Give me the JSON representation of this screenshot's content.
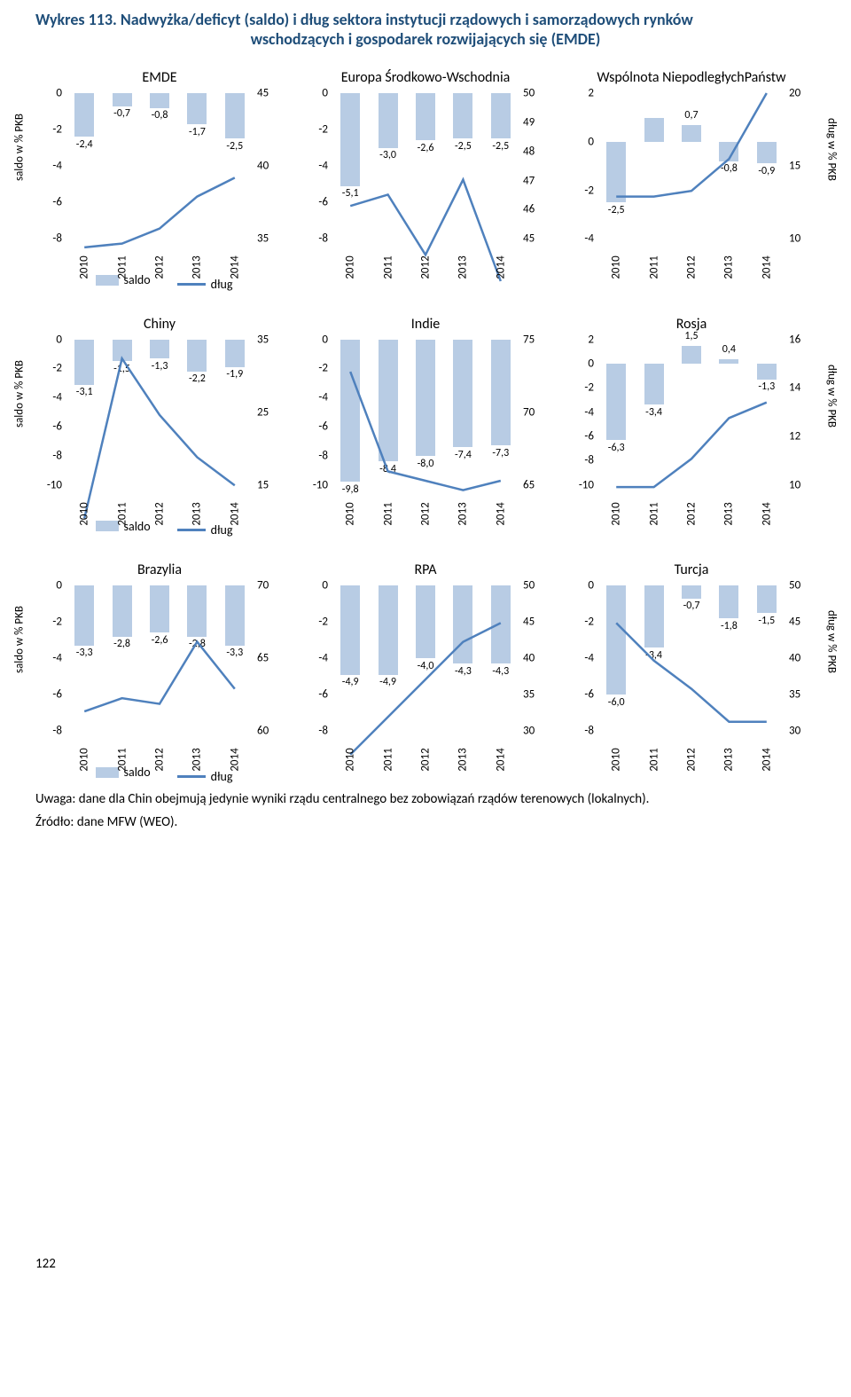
{
  "pageNumber": "122",
  "title": {
    "prefix": "Wykres 113. ",
    "main": "Nadwyżka/deficyt (saldo) i dług sektora instytucji rządowych i samorządowych rynków",
    "sub": "wschodzących i gospodarek rozwijających się (EMDE)"
  },
  "axisLabels": {
    "left": "saldo w % PKB",
    "right": "dług w % PKB"
  },
  "legend": {
    "saldo": "saldo",
    "dlug": "dług"
  },
  "note": "Uwaga: dane dla Chin obejmują jedynie wyniki rządu centralnego bez zobowiązań rządów terenowych (lokalnych).",
  "source": "Źródło: dane MFW (WEO).",
  "colors": {
    "bar": "#b8cce4",
    "line": "#4f81bd",
    "title": "#1f4e79"
  },
  "years": [
    "2010",
    "2011",
    "2012",
    "2013",
    "2014"
  ],
  "charts": [
    {
      "title": "EMDE",
      "saldo": {
        "min": -8,
        "max": 0,
        "step": 2,
        "values": [
          -2.4,
          -0.7,
          -0.8,
          -1.7,
          -2.5
        ],
        "labels": [
          "-2,4",
          "-0,7",
          "-0,8",
          "-1,7",
          "-2,5"
        ]
      },
      "dlug": {
        "min": 35,
        "max": 45,
        "step": 5,
        "values": [
          36.8,
          37.0,
          37.8,
          39.5,
          40.5
        ]
      },
      "showYLabels": true,
      "showLegend": true
    },
    {
      "title": "Europa Środkowo-\nWschodnia",
      "saldo": {
        "min": -8,
        "max": 0,
        "step": 2,
        "values": [
          -5.1,
          -3.0,
          -2.6,
          -2.5,
          -2.5
        ],
        "labels": [
          "-5,1",
          "-3,0",
          "-2,6",
          "-2,5",
          "-2,5"
        ]
      },
      "dlug": {
        "min": 45,
        "max": 50,
        "step": 1,
        "values": [
          47.0,
          47.3,
          45.7,
          47.7,
          45.0
        ]
      }
    },
    {
      "title": "Wspólnota Niepodległych\nPaństw",
      "saldo": {
        "min": -4,
        "max": 2,
        "step": 2,
        "values": [
          -2.5,
          1.0,
          0.7,
          -0.8,
          -0.9
        ],
        "labels": [
          "-2,5",
          "",
          "0,7",
          "-0,8",
          "-0,9"
        ]
      },
      "dlug": {
        "min": 10,
        "max": 20,
        "step": 5,
        "values": [
          14.5,
          14.5,
          14.8,
          16.5,
          20.0
        ]
      },
      "showYLabels": true
    },
    {
      "title": "Chiny",
      "saldo": {
        "min": -10,
        "max": 0,
        "step": 2,
        "values": [
          -3.1,
          -1.5,
          -1.3,
          -2.2,
          -1.9
        ],
        "labels": [
          "-3,1",
          "-1,5",
          "-1,3",
          "-2,2",
          "-1,9"
        ]
      },
      "dlug": {
        "min": 15,
        "max": 35,
        "step": 10,
        "values": [
          16.0,
          33.0,
          27.0,
          22.5,
          19.5
        ]
      },
      "showYLabels": true,
      "showLegend": true
    },
    {
      "title": "Indie",
      "saldo": {
        "min": -10,
        "max": 0,
        "step": 2,
        "values": [
          -9.8,
          -8.4,
          -8.0,
          -7.4,
          -7.3
        ],
        "labels": [
          "-9,8",
          "-8,4",
          "-8,0",
          "-7,4",
          "-7,3"
        ]
      },
      "dlug": {
        "min": 65,
        "max": 75,
        "step": 5,
        "values": [
          73.3,
          68.0,
          67.5,
          67.0,
          67.5
        ]
      }
    },
    {
      "title": "Rosja",
      "saldo": {
        "min": -10,
        "max": 2,
        "step": 2,
        "values": [
          -6.3,
          -3.4,
          1.5,
          0.4,
          -1.3
        ],
        "labels": [
          "-6,3",
          "-3,4",
          "1,5",
          "0,4",
          "-1,3"
        ]
      },
      "dlug": {
        "min": 10,
        "max": 16,
        "step": 2,
        "values": [
          11.3,
          11.3,
          12.2,
          13.5,
          14.0
        ]
      },
      "showYLabels": true
    },
    {
      "title": "Brazylia",
      "saldo": {
        "min": -8,
        "max": 0,
        "step": 2,
        "values": [
          -3.3,
          -2.8,
          -2.6,
          -2.8,
          -3.3
        ],
        "labels": [
          "-3,3",
          "-2,8",
          "-2,6",
          "-2,8",
          "-3,3"
        ]
      },
      "dlug": {
        "min": 60,
        "max": 70,
        "step": 5,
        "values": [
          63.3,
          64.0,
          63.7,
          67.0,
          64.5
        ]
      },
      "showYLabels": true,
      "showLegend": true
    },
    {
      "title": "RPA",
      "saldo": {
        "min": -8,
        "max": 0,
        "step": 2,
        "values": [
          -4.9,
          -4.9,
          -4.0,
          -4.3,
          -4.3
        ],
        "labels": [
          "-4,9",
          "-4,9",
          "-4,0",
          "-4,3",
          "-4,3"
        ]
      },
      "dlug": {
        "min": 30,
        "max": 50,
        "step": 5,
        "values": [
          32.0,
          36.0,
          40.0,
          44.0,
          46.0
        ]
      }
    },
    {
      "title": "Turcja",
      "saldo": {
        "min": -8,
        "max": 0,
        "step": 2,
        "values": [
          -6.0,
          -3.4,
          -0.7,
          -1.8,
          -1.5
        ],
        "labels": [
          "-6,0",
          "-3,4",
          "-0,7",
          "-1,8",
          "-1,5"
        ]
      },
      "dlug": {
        "min": 30,
        "max": 50,
        "step": 5,
        "values": [
          46.0,
          42.0,
          39.0,
          35.5,
          35.5
        ]
      },
      "showYLabels": true
    }
  ]
}
